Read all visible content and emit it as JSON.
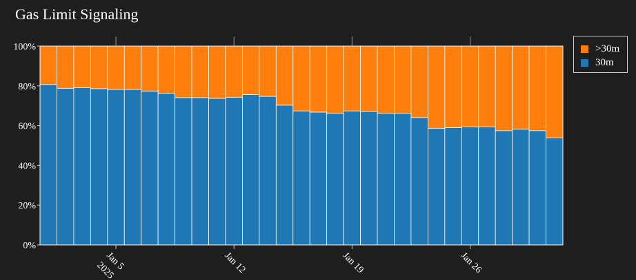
{
  "chart_data": {
    "type": "bar",
    "stacked": true,
    "title": "Gas Limit Signaling",
    "xlabel": "",
    "ylabel": "",
    "ylim": [
      0,
      100
    ],
    "y_ticks": [
      "0%",
      "20%",
      "40%",
      "60%",
      "80%",
      "100%"
    ],
    "x_ticks": [
      {
        "date": "2025-01-05",
        "label": "Jan 5",
        "sublabel": "2025"
      },
      {
        "date": "2025-01-12",
        "label": "Jan 12",
        "sublabel": ""
      },
      {
        "date": "2025-01-19",
        "label": "Jan 19",
        "sublabel": ""
      },
      {
        "date": "2025-01-26",
        "label": "Jan 26",
        "sublabel": ""
      }
    ],
    "categories": [
      "2025-01-01",
      "2025-01-02",
      "2025-01-03",
      "2025-01-04",
      "2025-01-05",
      "2025-01-06",
      "2025-01-07",
      "2025-01-08",
      "2025-01-09",
      "2025-01-10",
      "2025-01-11",
      "2025-01-12",
      "2025-01-13",
      "2025-01-14",
      "2025-01-15",
      "2025-01-16",
      "2025-01-17",
      "2025-01-18",
      "2025-01-19",
      "2025-01-20",
      "2025-01-21",
      "2025-01-22",
      "2025-01-23",
      "2025-01-24",
      "2025-01-25",
      "2025-01-26",
      "2025-01-27",
      "2025-01-28",
      "2025-01-29",
      "2025-01-30",
      "2025-01-31"
    ],
    "series": [
      {
        "name": "30m",
        "color": "#1f77b4",
        "values": [
          80.7,
          78.8,
          79.1,
          78.6,
          78.2,
          78.2,
          77.4,
          76.3,
          74.1,
          74.1,
          73.7,
          74.3,
          75.6,
          74.7,
          70.3,
          67.4,
          66.8,
          66.2,
          67.4,
          67.1,
          66.2,
          66.2,
          64.1,
          58.7,
          59.0,
          59.3,
          59.3,
          57.5,
          58.2,
          57.5,
          53.8
        ]
      },
      {
        "name": ">30m",
        "color": "#ff7f0e",
        "values": [
          19.3,
          21.2,
          20.9,
          21.4,
          21.8,
          21.8,
          22.6,
          23.7,
          25.9,
          25.9,
          26.3,
          25.7,
          24.4,
          25.3,
          29.7,
          32.6,
          33.2,
          33.8,
          32.6,
          32.9,
          33.8,
          33.8,
          35.9,
          41.3,
          41.0,
          40.7,
          40.7,
          42.5,
          41.8,
          42.5,
          46.2
        ]
      }
    ],
    "legend": {
      "position": "top-right",
      "entries": [
        ">30m",
        "30m"
      ]
    },
    "grid": false
  }
}
